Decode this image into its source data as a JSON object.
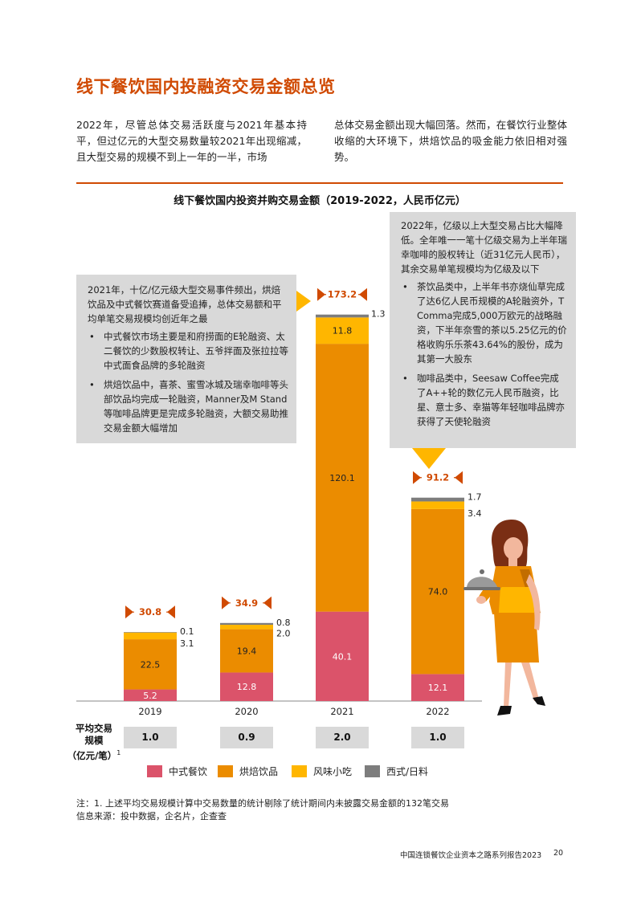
{
  "page_title": "线下餐饮国内投融资交易金额总览",
  "intro": {
    "left": "2022年，尽管总体交易活跃度与2021年基本持平，但过亿元的大型交易数量较2021年出现缩减，且大型交易的规模不到上一年的一半，市场",
    "right": "总体交易金额出现大幅回落。然而，在餐饮行业整体收缩的大环境下，烘焙饮品的吸金能力依旧相对强势。"
  },
  "callout_2021": {
    "intro": "2021年，十亿/亿元级大型交易事件频出，烘焙饮品及中式餐饮赛道备受追捧，总体交易额和平均单笔交易规模均创近年之最",
    "bullets": [
      "中式餐饮市场主要是和府捞面的E轮融资、太二餐饮的少数股权转让、五爷拌面及张拉拉等中式面食品牌的多轮融资",
      "烘焙饮品中，喜茶、蜜雪冰城及瑞幸咖啡等头部饮品均完成一轮融资，Manner及M Stand等咖啡品牌更是完成多轮融资，大额交易助推交易金额大幅增加"
    ]
  },
  "callout_2022": {
    "intro": "2022年，亿级以上大型交易占比大幅降低。全年唯一一笔十亿级交易为上半年瑞幸咖啡的股权转让（近31亿元人民币），其余交易单笔规模均为亿级及以下",
    "bullets": [
      "茶饮品类中，上半年书亦烧仙草完成了达6亿人民币规模的A轮融资外，T Comma完成5,000万欧元的战略融资，下半年奈雪的茶以5.25亿元的价格收购乐乐茶43.64%的股份，成为其第一大股东",
      "咖啡品类中，Seesaw Coffee完成了A++轮的数亿元人民币融资，比星、意士多、幸猫等年轻咖啡品牌亦获得了天使轮融资"
    ]
  },
  "chart_data": {
    "type": "bar",
    "stacked": true,
    "title": "线下餐饮国内投资并购交易金额（2019-2022，人民币亿元）",
    "categories": [
      "2019",
      "2020",
      "2021",
      "2022"
    ],
    "series": [
      {
        "name": "中式餐饮",
        "color": "#db536a",
        "values": [
          5.2,
          12.8,
          40.1,
          12.1
        ],
        "labels": [
          "5.2",
          "12.8",
          "40.1",
          "12.1"
        ]
      },
      {
        "name": "烘焙饮品",
        "color": "#eb8c00",
        "values": [
          22.5,
          19.4,
          120.1,
          74.0
        ],
        "labels": [
          "22.5",
          "19.4",
          "120.1",
          "74.0"
        ]
      },
      {
        "name": "风味小吃",
        "color": "#ffb600",
        "values": [
          3.1,
          2.0,
          11.8,
          3.4
        ],
        "labels": [
          "3.1",
          "2.0",
          "11.8",
          "3.4"
        ]
      },
      {
        "name": "西式/日料",
        "color": "#7d7d7d",
        "values": [
          0.1,
          0.8,
          1.3,
          1.7
        ],
        "labels": [
          "0.1",
          "0.8",
          "1.3",
          "1.7"
        ]
      }
    ],
    "totals": [
      "30.8",
      "34.9",
      "173.2",
      "91.2"
    ],
    "ylim": [
      0,
      173.2
    ],
    "legend_position": "bottom"
  },
  "avg_deal": {
    "title_lines": [
      "平均交易",
      "规模",
      "（亿元/笔）"
    ],
    "footnote_mark": "1",
    "values": [
      "1.0",
      "0.9",
      "2.0",
      "1.0"
    ]
  },
  "footnote": "注：1. 上述平均交易规模计算中交易数量的统计剔除了统计期间内未披露交易金额的132笔交易",
  "source": "信息来源：投中数据，企名片，企查查",
  "footer": "中国连锁餐饮企业资本之路系列报告2023",
  "page_number": "20"
}
